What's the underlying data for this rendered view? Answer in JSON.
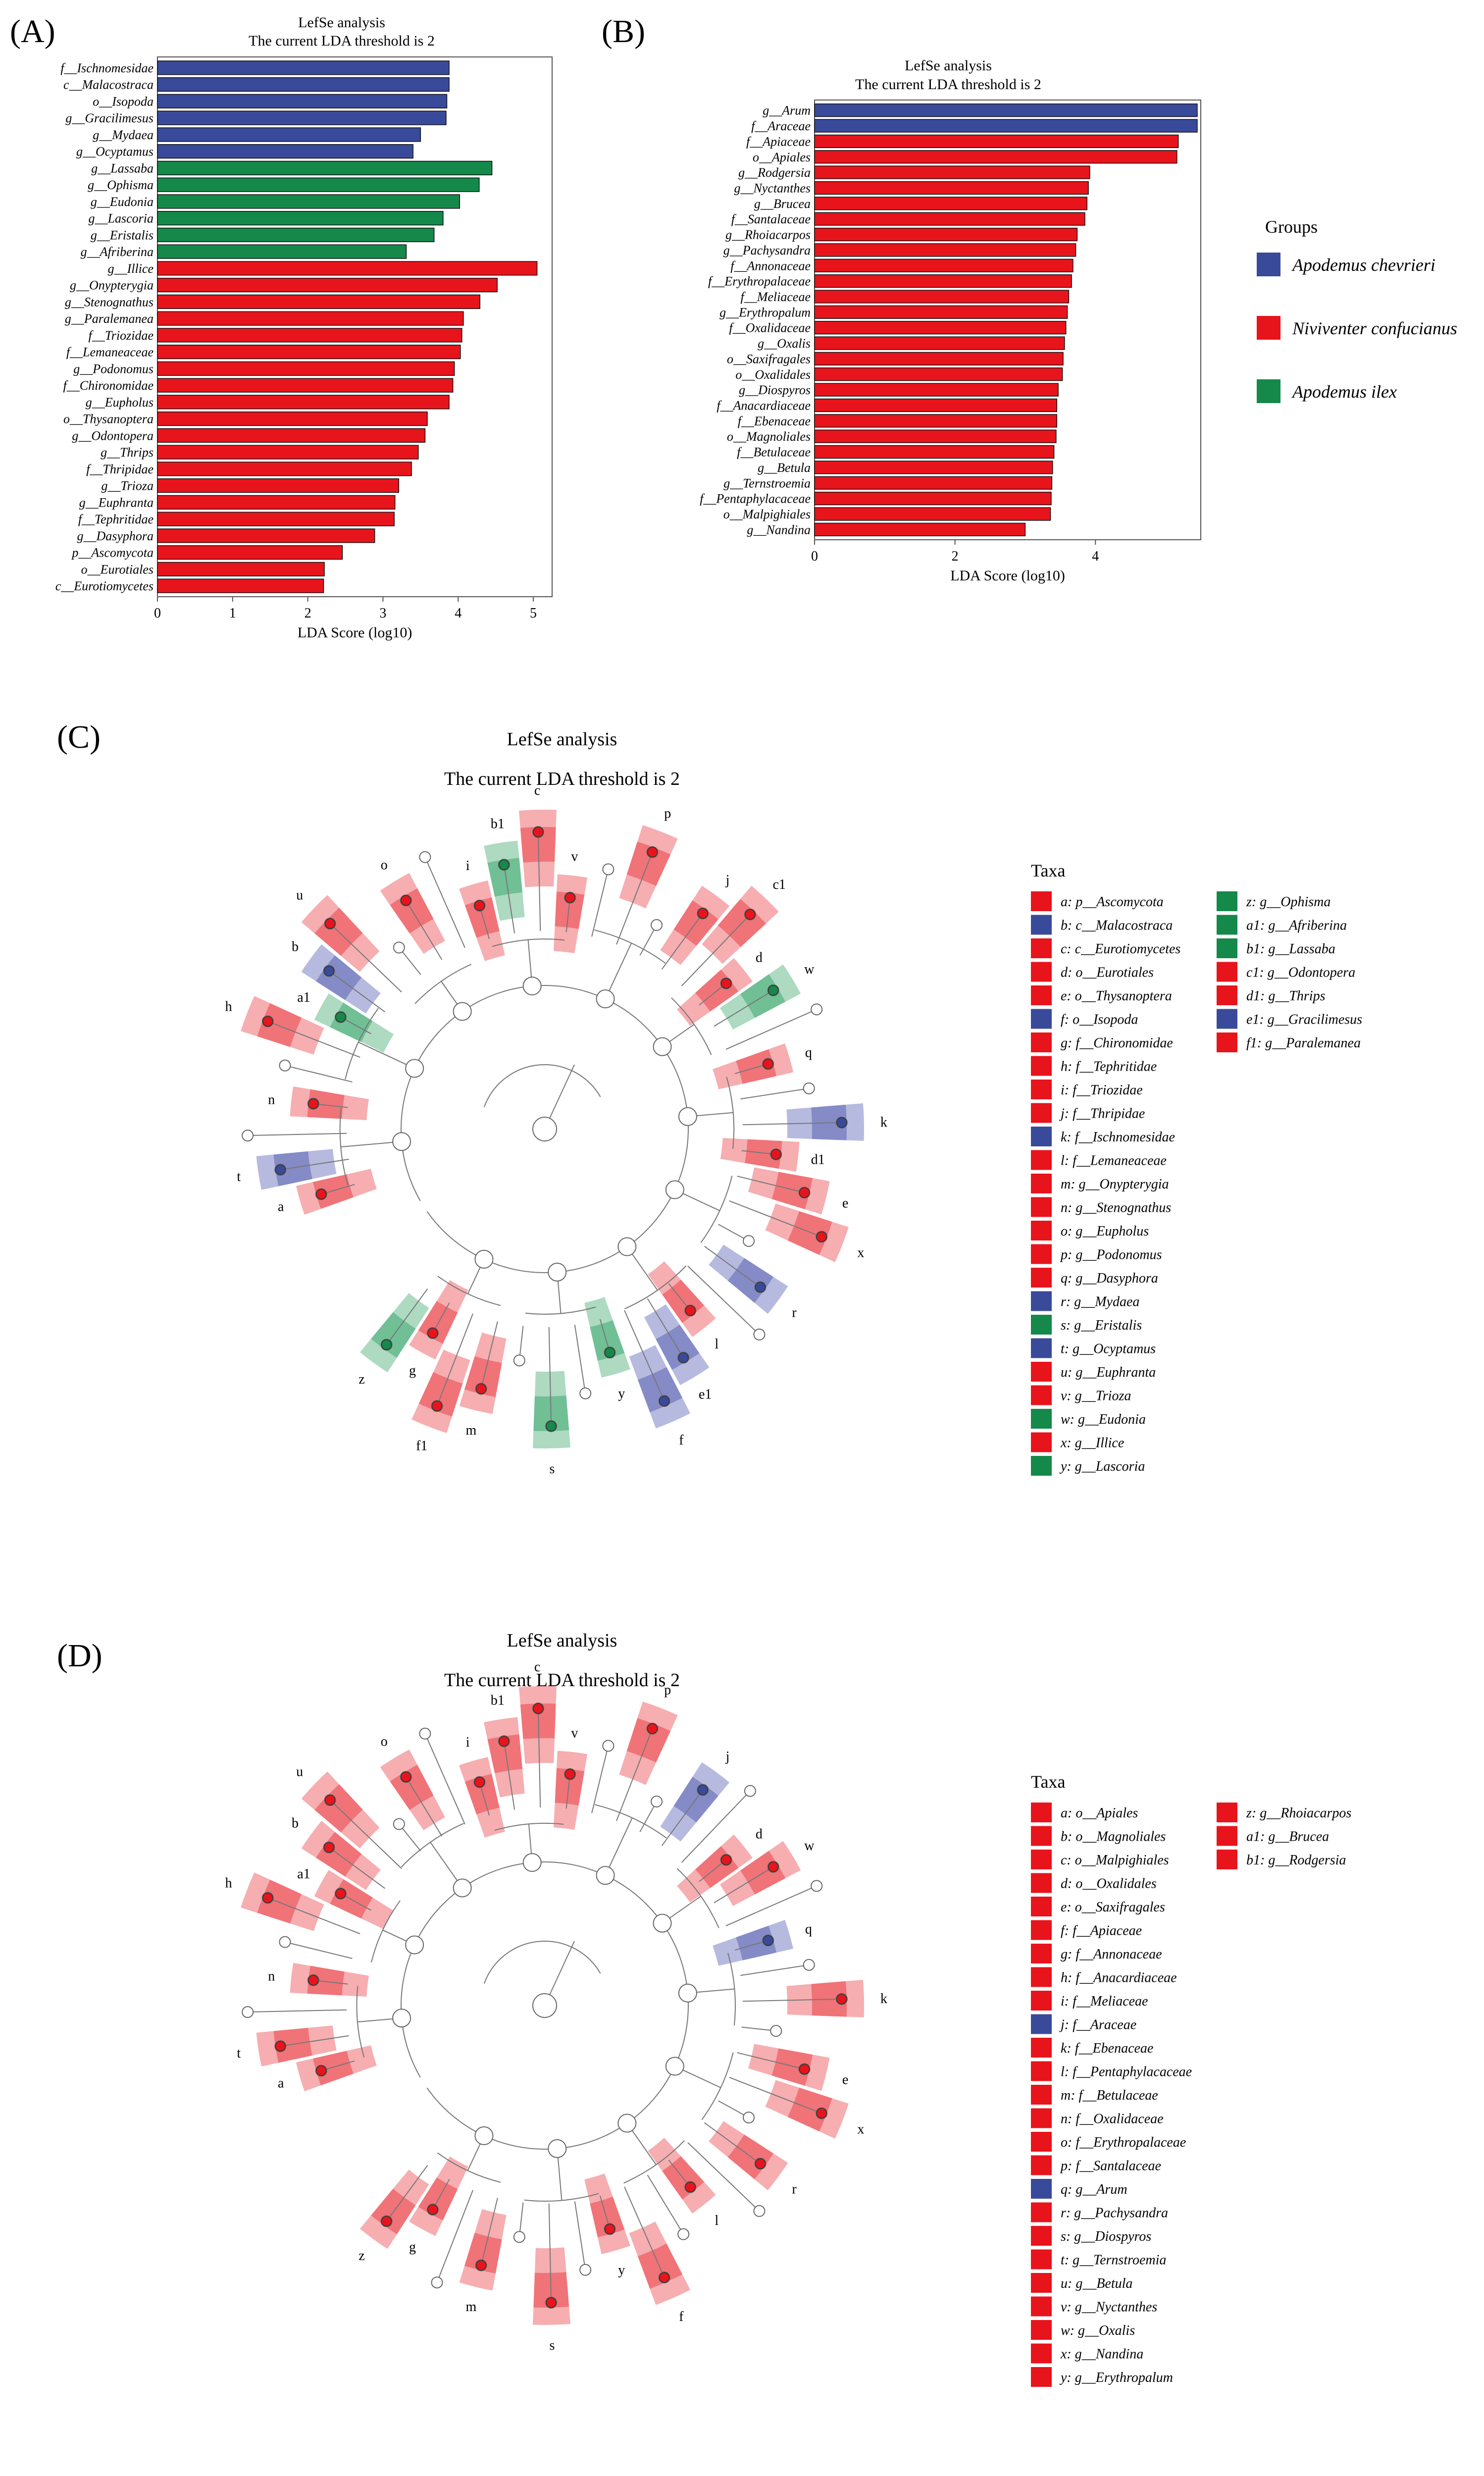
{
  "colors": {
    "Apodemus chevrieri": "#3a4a9a",
    "Niviventer confucianus": "#e8141c",
    "Apodemus ilex": "#14894a"
  },
  "legend": {
    "title": "Groups",
    "items": [
      "Apodemus chevrieri",
      "Niviventer confucianus",
      "Apodemus ilex"
    ]
  },
  "chart_data": [
    {
      "type": "bar",
      "panel": "(A)",
      "title": "LefSe analysis",
      "subtitle": "The current LDA threshold is 2",
      "xlabel": "LDA Score (log10)",
      "xlim": [
        0,
        5.25
      ],
      "xticks": [
        0,
        1,
        2,
        3,
        4,
        5
      ],
      "categories": [
        "f__Ischnomesidae",
        "c__Malacostraca",
        "o__Isopoda",
        "g__Gracilimesus",
        "g__Mydaea",
        "g__Ocyptamus",
        "g__Lassaba",
        "g__Ophisma",
        "g__Eudonia",
        "g__Lascoria",
        "g__Eristalis",
        "g__Afriberina",
        "g__Illice",
        "g__Onypterygia",
        "g__Stenognathus",
        "g__Paralemanea",
        "f__Triozidae",
        "f__Lemaneaceae",
        "g__Podonomus",
        "f__Chironomidae",
        "g__Eupholus",
        "o__Thysanoptera",
        "g__Odontopera",
        "g__Thrips",
        "f__Thripidae",
        "g__Trioza",
        "g__Euphranta",
        "f__Tephritidae",
        "g__Dasyphora",
        "p__Ascomycota",
        "o__Eurotiales",
        "c__Eurotiomycetes"
      ],
      "values": [
        3.88,
        3.88,
        3.85,
        3.84,
        3.5,
        3.4,
        4.45,
        4.28,
        4.02,
        3.8,
        3.68,
        3.31,
        5.05,
        4.52,
        4.29,
        4.07,
        4.05,
        4.03,
        3.95,
        3.93,
        3.88,
        3.59,
        3.56,
        3.47,
        3.38,
        3.21,
        3.16,
        3.15,
        2.89,
        2.46,
        2.22,
        2.21
      ],
      "groups": [
        "Apodemus chevrieri",
        "Apodemus chevrieri",
        "Apodemus chevrieri",
        "Apodemus chevrieri",
        "Apodemus chevrieri",
        "Apodemus chevrieri",
        "Apodemus ilex",
        "Apodemus ilex",
        "Apodemus ilex",
        "Apodemus ilex",
        "Apodemus ilex",
        "Apodemus ilex",
        "Niviventer confucianus",
        "Niviventer confucianus",
        "Niviventer confucianus",
        "Niviventer confucianus",
        "Niviventer confucianus",
        "Niviventer confucianus",
        "Niviventer confucianus",
        "Niviventer confucianus",
        "Niviventer confucianus",
        "Niviventer confucianus",
        "Niviventer confucianus",
        "Niviventer confucianus",
        "Niviventer confucianus",
        "Niviventer confucianus",
        "Niviventer confucianus",
        "Niviventer confucianus",
        "Niviventer confucianus",
        "Niviventer confucianus",
        "Niviventer confucianus",
        "Niviventer confucianus"
      ]
    },
    {
      "type": "bar",
      "panel": "(B)",
      "title": "LefSe analysis",
      "subtitle": "The current LDA threshold is 2",
      "xlabel": "LDA Score (log10)",
      "xlim": [
        0,
        5.5
      ],
      "xticks": [
        0,
        2,
        4
      ],
      "categories": [
        "g__Arum",
        "f__Araceae",
        "f__Apiaceae",
        "o__Apiales",
        "g__Rodgersia",
        "g__Nyctanthes",
        "g__Brucea",
        "f__Santalaceae",
        "g__Rhoiacarpos",
        "g__Pachysandra",
        "f__Annonaceae",
        "f__Erythropalaceae",
        "f__Meliaceae",
        "g__Erythropalum",
        "f__Oxalidaceae",
        "g__Oxalis",
        "o__Saxifragales",
        "o__Oxalidales",
        "g__Diospyros",
        "f__Anacardiaceae",
        "f__Ebenaceae",
        "o__Magnoliales",
        "f__Betulaceae",
        "g__Betula",
        "g__Ternstroemia",
        "f__Pentaphylacaceae",
        "o__Malpighiales",
        "g__Nandina"
      ],
      "values": [
        5.45,
        5.45,
        5.18,
        5.16,
        3.92,
        3.9,
        3.88,
        3.85,
        3.74,
        3.72,
        3.68,
        3.66,
        3.62,
        3.6,
        3.58,
        3.56,
        3.54,
        3.53,
        3.47,
        3.45,
        3.45,
        3.44,
        3.41,
        3.39,
        3.38,
        3.37,
        3.36,
        3.0
      ],
      "groups": [
        "Apodemus chevrieri",
        "Apodemus chevrieri",
        "Niviventer confucianus",
        "Niviventer confucianus",
        "Niviventer confucianus",
        "Niviventer confucianus",
        "Niviventer confucianus",
        "Niviventer confucianus",
        "Niviventer confucianus",
        "Niviventer confucianus",
        "Niviventer confucianus",
        "Niviventer confucianus",
        "Niviventer confucianus",
        "Niviventer confucianus",
        "Niviventer confucianus",
        "Niviventer confucianus",
        "Niviventer confucianus",
        "Niviventer confucianus",
        "Niviventer confucianus",
        "Niviventer confucianus",
        "Niviventer confucianus",
        "Niviventer confucianus",
        "Niviventer confucianus",
        "Niviventer confucianus",
        "Niviventer confucianus",
        "Niviventer confucianus",
        "Niviventer confucianus",
        "Niviventer confucianus"
      ]
    },
    {
      "type": "cladogram",
      "panel": "(C)",
      "title": "LefSe analysis",
      "subtitle": "The current LDA threshold is 2",
      "taxa_title": "Taxa",
      "taxa": [
        {
          "code": "a",
          "name": "p__Ascomycota",
          "group": "Niviventer confucianus"
        },
        {
          "code": "b",
          "name": "c__Malacostraca",
          "group": "Apodemus chevrieri"
        },
        {
          "code": "c",
          "name": "c__Eurotiomycetes",
          "group": "Niviventer confucianus"
        },
        {
          "code": "d",
          "name": "o__Eurotiales",
          "group": "Niviventer confucianus"
        },
        {
          "code": "e",
          "name": "o__Thysanoptera",
          "group": "Niviventer confucianus"
        },
        {
          "code": "f",
          "name": "o__Isopoda",
          "group": "Apodemus chevrieri"
        },
        {
          "code": "g",
          "name": "f__Chironomidae",
          "group": "Niviventer confucianus"
        },
        {
          "code": "h",
          "name": "f__Tephritidae",
          "group": "Niviventer confucianus"
        },
        {
          "code": "i",
          "name": "f__Triozidae",
          "group": "Niviventer confucianus"
        },
        {
          "code": "j",
          "name": "f__Thripidae",
          "group": "Niviventer confucianus"
        },
        {
          "code": "k",
          "name": "f__Ischnomesidae",
          "group": "Apodemus chevrieri"
        },
        {
          "code": "l",
          "name": "f__Lemaneaceae",
          "group": "Niviventer confucianus"
        },
        {
          "code": "m",
          "name": "g__Onypterygia",
          "group": "Niviventer confucianus"
        },
        {
          "code": "n",
          "name": "g__Stenognathus",
          "group": "Niviventer confucianus"
        },
        {
          "code": "o",
          "name": "g__Eupholus",
          "group": "Niviventer confucianus"
        },
        {
          "code": "p",
          "name": "g__Podonomus",
          "group": "Niviventer confucianus"
        },
        {
          "code": "q",
          "name": "g__Dasyphora",
          "group": "Niviventer confucianus"
        },
        {
          "code": "r",
          "name": "g__Mydaea",
          "group": "Apodemus chevrieri"
        },
        {
          "code": "s",
          "name": "g__Eristalis",
          "group": "Apodemus ilex"
        },
        {
          "code": "t",
          "name": "g__Ocyptamus",
          "group": "Apodemus chevrieri"
        },
        {
          "code": "u",
          "name": "g__Euphranta",
          "group": "Niviventer confucianus"
        },
        {
          "code": "v",
          "name": "g__Trioza",
          "group": "Niviventer confucianus"
        },
        {
          "code": "w",
          "name": "g__Eudonia",
          "group": "Apodemus ilex"
        },
        {
          "code": "x",
          "name": "g__Illice",
          "group": "Niviventer confucianus"
        },
        {
          "code": "y",
          "name": "g__Lascoria",
          "group": "Apodemus ilex"
        },
        {
          "code": "z",
          "name": "g__Ophisma",
          "group": "Apodemus ilex"
        },
        {
          "code": "a1",
          "name": "g__Afriberina",
          "group": "Apodemus ilex"
        },
        {
          "code": "b1",
          "name": "g__Lassaba",
          "group": "Apodemus ilex"
        },
        {
          "code": "c1",
          "name": "g__Odontopera",
          "group": "Niviventer confucianus"
        },
        {
          "code": "d1",
          "name": "g__Thrips",
          "group": "Niviventer confucianus"
        },
        {
          "code": "e1",
          "name": "g__Gracilimesus",
          "group": "Apodemus chevrieri"
        },
        {
          "code": "f1",
          "name": "g__Paralemanea",
          "group": "Niviventer confucianus"
        }
      ]
    },
    {
      "type": "cladogram",
      "panel": "(D)",
      "title": "LefSe analysis",
      "subtitle": "The current LDA threshold is 2",
      "taxa_title": "Taxa",
      "taxa": [
        {
          "code": "a",
          "name": "o__Apiales",
          "group": "Niviventer confucianus"
        },
        {
          "code": "b",
          "name": "o__Magnoliales",
          "group": "Niviventer confucianus"
        },
        {
          "code": "c",
          "name": "o__Malpighiales",
          "group": "Niviventer confucianus"
        },
        {
          "code": "d",
          "name": "o__Oxalidales",
          "group": "Niviventer confucianus"
        },
        {
          "code": "e",
          "name": "o__Saxifragales",
          "group": "Niviventer confucianus"
        },
        {
          "code": "f",
          "name": "f__Apiaceae",
          "group": "Niviventer confucianus"
        },
        {
          "code": "g",
          "name": "f__Annonaceae",
          "group": "Niviventer confucianus"
        },
        {
          "code": "h",
          "name": "f__Anacardiaceae",
          "group": "Niviventer confucianus"
        },
        {
          "code": "i",
          "name": "f__Meliaceae",
          "group": "Niviventer confucianus"
        },
        {
          "code": "j",
          "name": "f__Araceae",
          "group": "Apodemus chevrieri"
        },
        {
          "code": "k",
          "name": "f__Ebenaceae",
          "group": "Niviventer confucianus"
        },
        {
          "code": "l",
          "name": "f__Pentaphylacaceae",
          "group": "Niviventer confucianus"
        },
        {
          "code": "m",
          "name": "f__Betulaceae",
          "group": "Niviventer confucianus"
        },
        {
          "code": "n",
          "name": "f__Oxalidaceae",
          "group": "Niviventer confucianus"
        },
        {
          "code": "o",
          "name": "f__Erythropalaceae",
          "group": "Niviventer confucianus"
        },
        {
          "code": "p",
          "name": "f__Santalaceae",
          "group": "Niviventer confucianus"
        },
        {
          "code": "q",
          "name": "g__Arum",
          "group": "Apodemus chevrieri"
        },
        {
          "code": "r",
          "name": "g__Pachysandra",
          "group": "Niviventer confucianus"
        },
        {
          "code": "s",
          "name": "g__Diospyros",
          "group": "Niviventer confucianus"
        },
        {
          "code": "t",
          "name": "g__Ternstroemia",
          "group": "Niviventer confucianus"
        },
        {
          "code": "u",
          "name": "g__Betula",
          "group": "Niviventer confucianus"
        },
        {
          "code": "v",
          "name": "g__Nyctanthes",
          "group": "Niviventer confucianus"
        },
        {
          "code": "w",
          "name": "g__Oxalis",
          "group": "Niviventer confucianus"
        },
        {
          "code": "x",
          "name": "g__Nandina",
          "group": "Niviventer confucianus"
        },
        {
          "code": "y",
          "name": "g__Erythropalum",
          "group": "Niviventer confucianus"
        },
        {
          "code": "z",
          "name": "g__Rhoiacarpos",
          "group": "Niviventer confucianus"
        },
        {
          "code": "a1",
          "name": "g__Brucea",
          "group": "Niviventer confucianus"
        },
        {
          "code": "b1",
          "name": "g__Rodgersia",
          "group": "Niviventer confucianus"
        }
      ]
    }
  ]
}
